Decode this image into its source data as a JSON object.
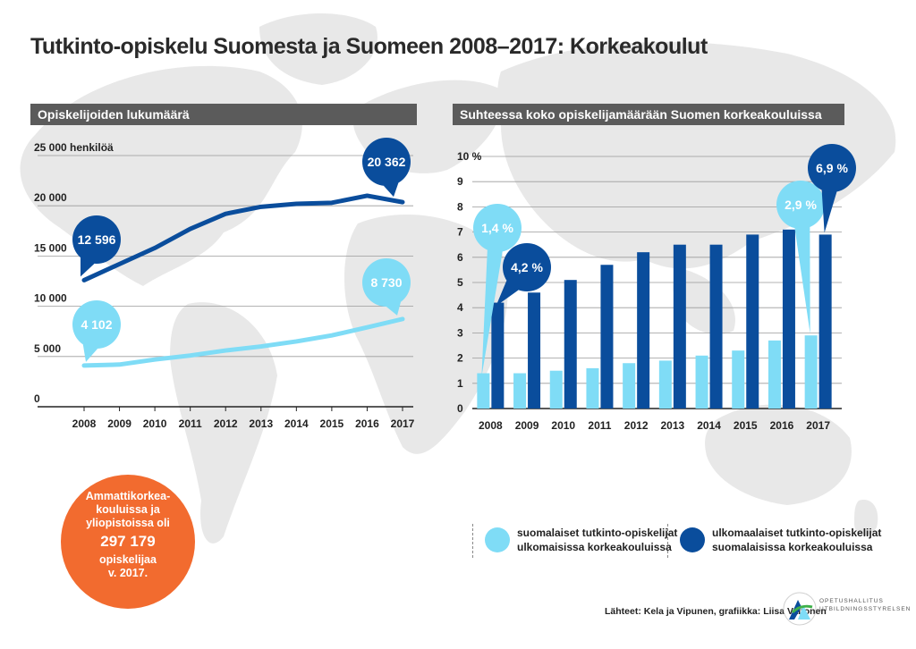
{
  "title": "Tutkinto-opiskelu Suomesta ja Suomeen 2008–2017: Korkeakoulut",
  "colors": {
    "dark_blue": "#0a4d9c",
    "light_blue": "#7fdcf6",
    "orange": "#f26b2f",
    "header_gray": "#5b5b5b",
    "map_gray": "#e6e6e6"
  },
  "chart_data": [
    {
      "type": "line",
      "title": "Opiskelijoiden lukumäärä",
      "ylabel": "25 000 henkilöä",
      "ylim": [
        0,
        25000
      ],
      "y_ticks": [
        0,
        5000,
        10000,
        15000,
        20000,
        25000
      ],
      "y_tick_labels": [
        "0",
        "5 000",
        "10 000",
        "15 000",
        "20 000",
        "25 000"
      ],
      "y_unit_label": "henkilöä",
      "x": [
        "2008",
        "2009",
        "2010",
        "2011",
        "2012",
        "2013",
        "2014",
        "2015",
        "2016",
        "2017"
      ],
      "grid": true,
      "series": [
        {
          "color": "#0a4d9c",
          "values": [
            12596,
            14200,
            15800,
            17700,
            19200,
            19900,
            20200,
            20300,
            21000,
            20362
          ],
          "label": "12 596",
          "end_label": "20 362"
        },
        {
          "color": "#7fdcf6",
          "values": [
            4102,
            4200,
            4700,
            5100,
            5600,
            6000,
            6500,
            7100,
            7900,
            8730
          ],
          "label": "4 102",
          "end_label": "8 730"
        }
      ]
    },
    {
      "type": "bar",
      "title": "Suhteessa koko opiskelijamäärään Suomen korkeakouluissa",
      "ylim": [
        0,
        10
      ],
      "y_ticks": [
        0,
        1,
        2,
        3,
        4,
        5,
        6,
        7,
        8,
        9,
        10
      ],
      "y_tick_labels": [
        "0",
        "1",
        "2",
        "3",
        "4",
        "5",
        "6",
        "7",
        "8",
        "9",
        "10"
      ],
      "y_unit_label": "%",
      "categories": [
        "2008",
        "2009",
        "2010",
        "2011",
        "2012",
        "2013",
        "2014",
        "2015",
        "2016",
        "2017"
      ],
      "grid": true,
      "series": [
        {
          "name": "suomalaiset tutkinto-opiskelijat ulkomaisissa korkeakouluissa",
          "color": "#7fdcf6",
          "values": [
            1.4,
            1.4,
            1.5,
            1.6,
            1.8,
            1.9,
            2.1,
            2.3,
            2.7,
            2.9
          ],
          "start_label": "1,4 %",
          "end_label": "2,9 %"
        },
        {
          "name": "ulkomaalaiset tutkinto-opiskelijat suomalaisissa korkeakouluissa",
          "color": "#0a4d9c",
          "values": [
            4.2,
            4.6,
            5.1,
            5.7,
            6.2,
            6.5,
            6.5,
            6.9,
            7.1,
            6.9
          ],
          "start_label": "4,2 %",
          "end_label": "6,9 %"
        }
      ]
    }
  ],
  "highlight": {
    "line1": "Ammattikorkea-",
    "line2": "kouluissa ja",
    "line3": "yliopistoissa oli",
    "number": "297 179",
    "line4": "opiskelijaa",
    "line5": "v. 2017."
  },
  "legend": {
    "item1_line1": "suomalaiset tutkinto-opiskelijat",
    "item1_line2": "ulkomaisissa korkeakouluissa",
    "item2_line1": "ulkomaalaiset tutkinto-opiskelijat",
    "item2_line2": "suomalaisissa korkeakouluissa"
  },
  "source": "Lähteet: Kela ja Vipunen, grafiikka: Liisa Valtonen",
  "logo": {
    "line1": "OPETUSHALLITUS",
    "line2": "UTBILDNINGSSTYRELSEN"
  }
}
